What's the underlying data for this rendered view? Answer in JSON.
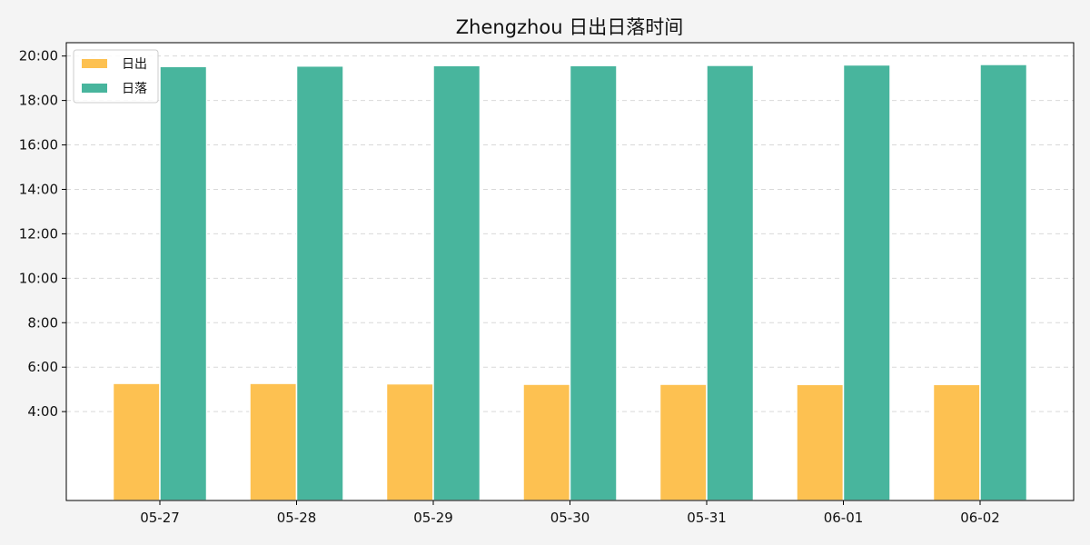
{
  "chart_data": {
    "type": "bar",
    "title": "Zhengzhou 日出日落时间",
    "xlabel": "",
    "ylabel": "",
    "categories": [
      "05-27",
      "05-28",
      "05-29",
      "05-30",
      "05-31",
      "06-01",
      "06-02"
    ],
    "series": [
      {
        "name": "日出",
        "color": "#fdc151",
        "values": [
          5.27,
          5.27,
          5.25,
          5.23,
          5.23,
          5.22,
          5.22
        ]
      },
      {
        "name": "日落",
        "color": "#48b59d",
        "values": [
          19.53,
          19.55,
          19.57,
          19.57,
          19.58,
          19.6,
          19.62
        ]
      }
    ],
    "ylim": [
      0,
      20.6
    ],
    "yticks": [
      4,
      6,
      8,
      10,
      12,
      14,
      16,
      18,
      20
    ],
    "ytick_labels": [
      "4:00",
      "6:00",
      "8:00",
      "10:00",
      "12:00",
      "14:00",
      "16:00",
      "18:00",
      "20:00"
    ],
    "grid": true,
    "legend_position": "top-left"
  }
}
